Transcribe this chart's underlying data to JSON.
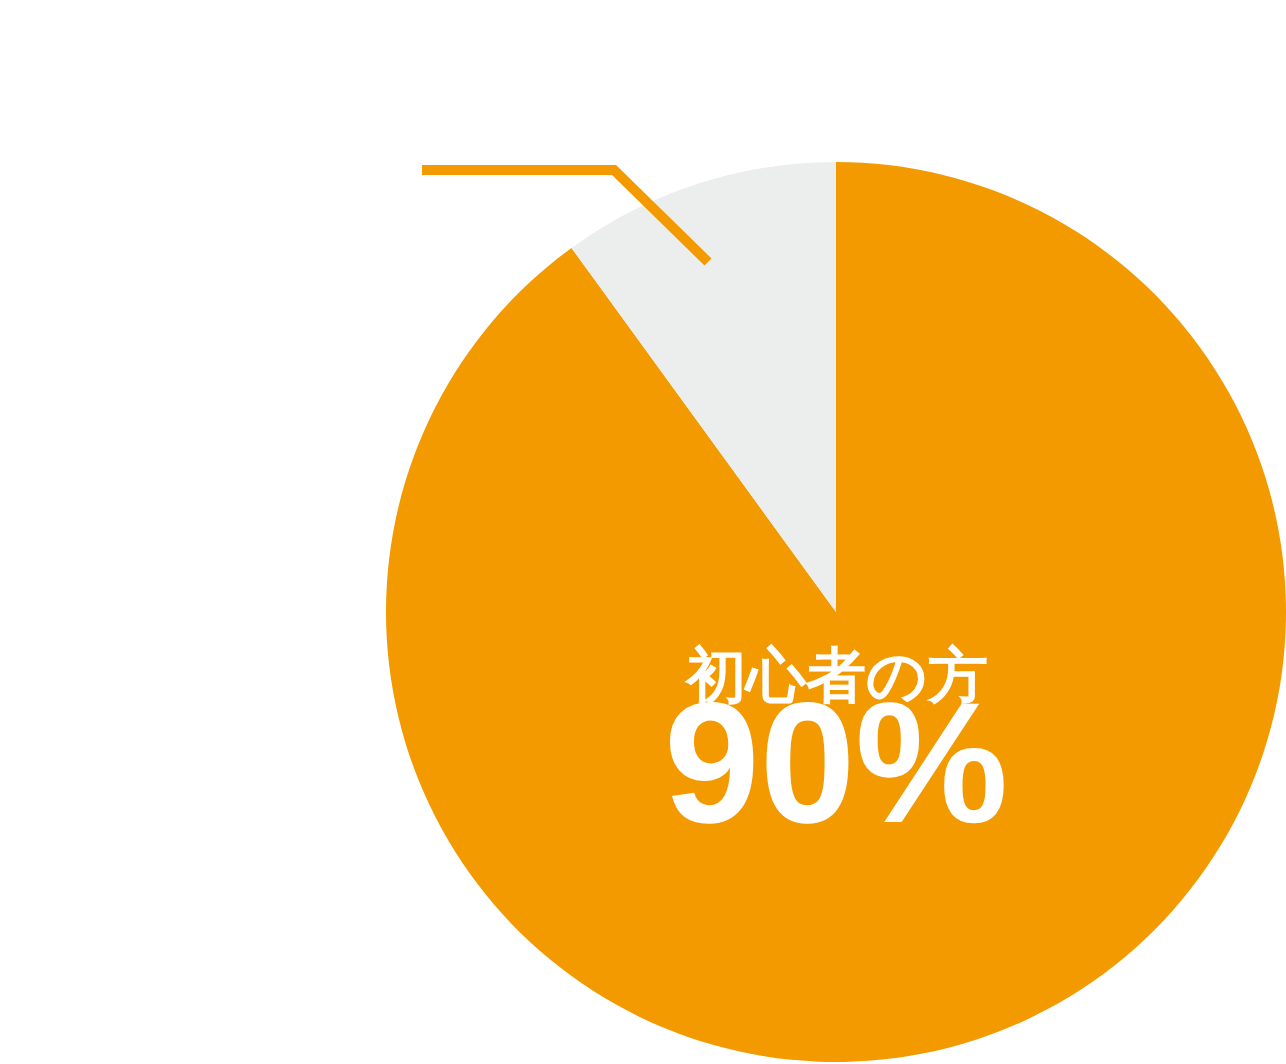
{
  "chart_data": {
    "type": "pie",
    "categories": [
      "初心者の方",
      null
    ],
    "values": [
      90,
      10
    ],
    "colors": [
      "#f39a00",
      "#eceeed"
    ],
    "value_labels": [
      "90%",
      null
    ]
  }
}
